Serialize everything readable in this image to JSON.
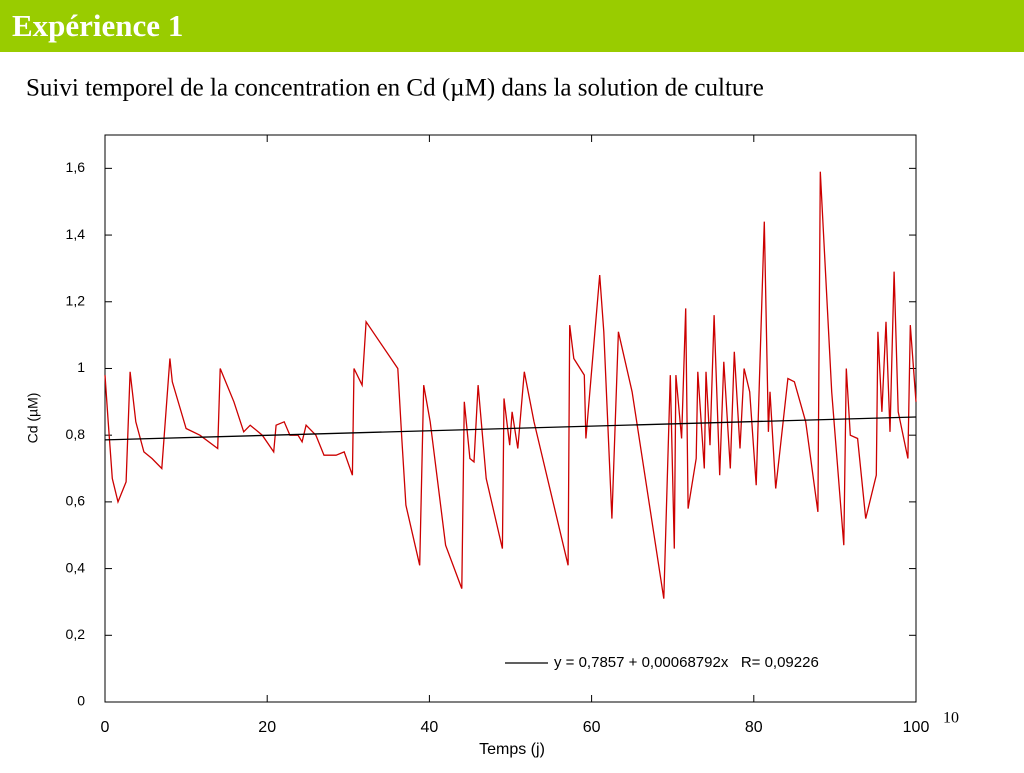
{
  "slide": {
    "title": "Expérience 1",
    "subtitle": "Suivi temporel de la concentration en Cd (µM) dans la solution de culture",
    "page_number": "10"
  },
  "chart_data": {
    "type": "line",
    "x_label": "Temps (j)",
    "y_label": "Cd (µM)",
    "xlim": [
      0,
      100
    ],
    "ylim": [
      0,
      1.7
    ],
    "xticks": [
      0,
      20,
      40,
      60,
      80,
      100
    ],
    "yticks": [
      0,
      {
        "value": 0.2,
        "label": "0,2"
      },
      {
        "value": 0.4,
        "label": "0,4"
      },
      {
        "value": 0.6,
        "label": "0,6"
      },
      {
        "value": 0.8,
        "label": "0,8"
      },
      1,
      {
        "value": 1.2,
        "label": "1,2"
      },
      {
        "value": 1.4,
        "label": "1,4"
      },
      {
        "value": 1.6,
        "label": "1,6"
      }
    ],
    "series": [
      {
        "color": "#cc0000",
        "x": [
          0,
          0.4,
          0.9,
          1.6,
          2.6,
          3.1,
          3.8,
          4.8,
          5.8,
          7.0,
          8.0,
          8.3,
          10.0,
          11.7,
          13.9,
          14.2,
          15.9,
          17.1,
          17.9,
          19.4,
          20.8,
          21.1,
          22.1,
          22.8,
          23.8,
          24.3,
          24.8,
          26.0,
          27.0,
          28.5,
          29.5,
          30.5,
          30.7,
          31.7,
          32.2,
          36.1,
          36.6,
          37.1,
          38.8,
          39.3,
          40.1,
          42.0,
          44.0,
          44.3,
          45.0,
          45.5,
          46.0,
          47.0,
          49.0,
          49.2,
          49.9,
          50.2,
          50.9,
          51.7,
          52.9,
          57.1,
          57.3,
          57.8,
          59.1,
          59.3,
          61.0,
          61.5,
          62.5,
          63.3,
          65.0,
          68.9,
          69.7,
          70.2,
          70.4,
          71.1,
          71.6,
          71.9,
          72.9,
          73.1,
          73.9,
          74.1,
          74.6,
          75.1,
          75.8,
          76.3,
          77.1,
          77.6,
          78.3,
          78.8,
          79.5,
          80.3,
          81.3,
          81.8,
          82.0,
          82.7,
          83.2,
          84.2,
          85.0,
          86.4,
          87.9,
          88.2,
          89.6,
          91.1,
          91.4,
          91.9,
          92.8,
          93.8,
          95.1,
          95.3,
          95.8,
          96.3,
          96.8,
          97.3,
          97.8,
          99.0,
          99.3,
          100
        ],
        "values": [
          0.98,
          0.84,
          0.67,
          0.6,
          0.66,
          0.99,
          0.84,
          0.75,
          0.73,
          0.7,
          1.03,
          0.96,
          0.82,
          0.8,
          0.76,
          1.0,
          0.9,
          0.81,
          0.83,
          0.8,
          0.75,
          0.83,
          0.84,
          0.8,
          0.8,
          0.78,
          0.83,
          0.8,
          0.74,
          0.74,
          0.75,
          0.68,
          1.0,
          0.95,
          1.14,
          1.0,
          0.79,
          0.59,
          0.41,
          0.95,
          0.84,
          0.47,
          0.34,
          0.9,
          0.73,
          0.72,
          0.95,
          0.67,
          0.46,
          0.91,
          0.77,
          0.87,
          0.76,
          0.99,
          0.84,
          0.41,
          1.13,
          1.03,
          0.98,
          0.79,
          1.28,
          1.11,
          0.55,
          1.11,
          0.93,
          0.31,
          0.98,
          0.46,
          0.98,
          0.79,
          1.18,
          0.58,
          0.73,
          0.99,
          0.7,
          0.99,
          0.77,
          1.16,
          0.68,
          1.02,
          0.7,
          1.05,
          0.76,
          1.0,
          0.93,
          0.65,
          1.44,
          0.81,
          0.93,
          0.64,
          0.75,
          0.97,
          0.96,
          0.84,
          0.57,
          1.59,
          0.93,
          0.47,
          1.0,
          0.8,
          0.79,
          0.55,
          0.68,
          1.11,
          0.87,
          1.14,
          0.81,
          1.29,
          0.87,
          0.73,
          1.13,
          0.9
        ]
      },
      {
        "name": "y = 0,7857 + 0,00068792x   R= 0,09226",
        "color": "#000000",
        "x": [
          0,
          100
        ],
        "values": [
          0.7857,
          0.8545
        ]
      }
    ]
  }
}
